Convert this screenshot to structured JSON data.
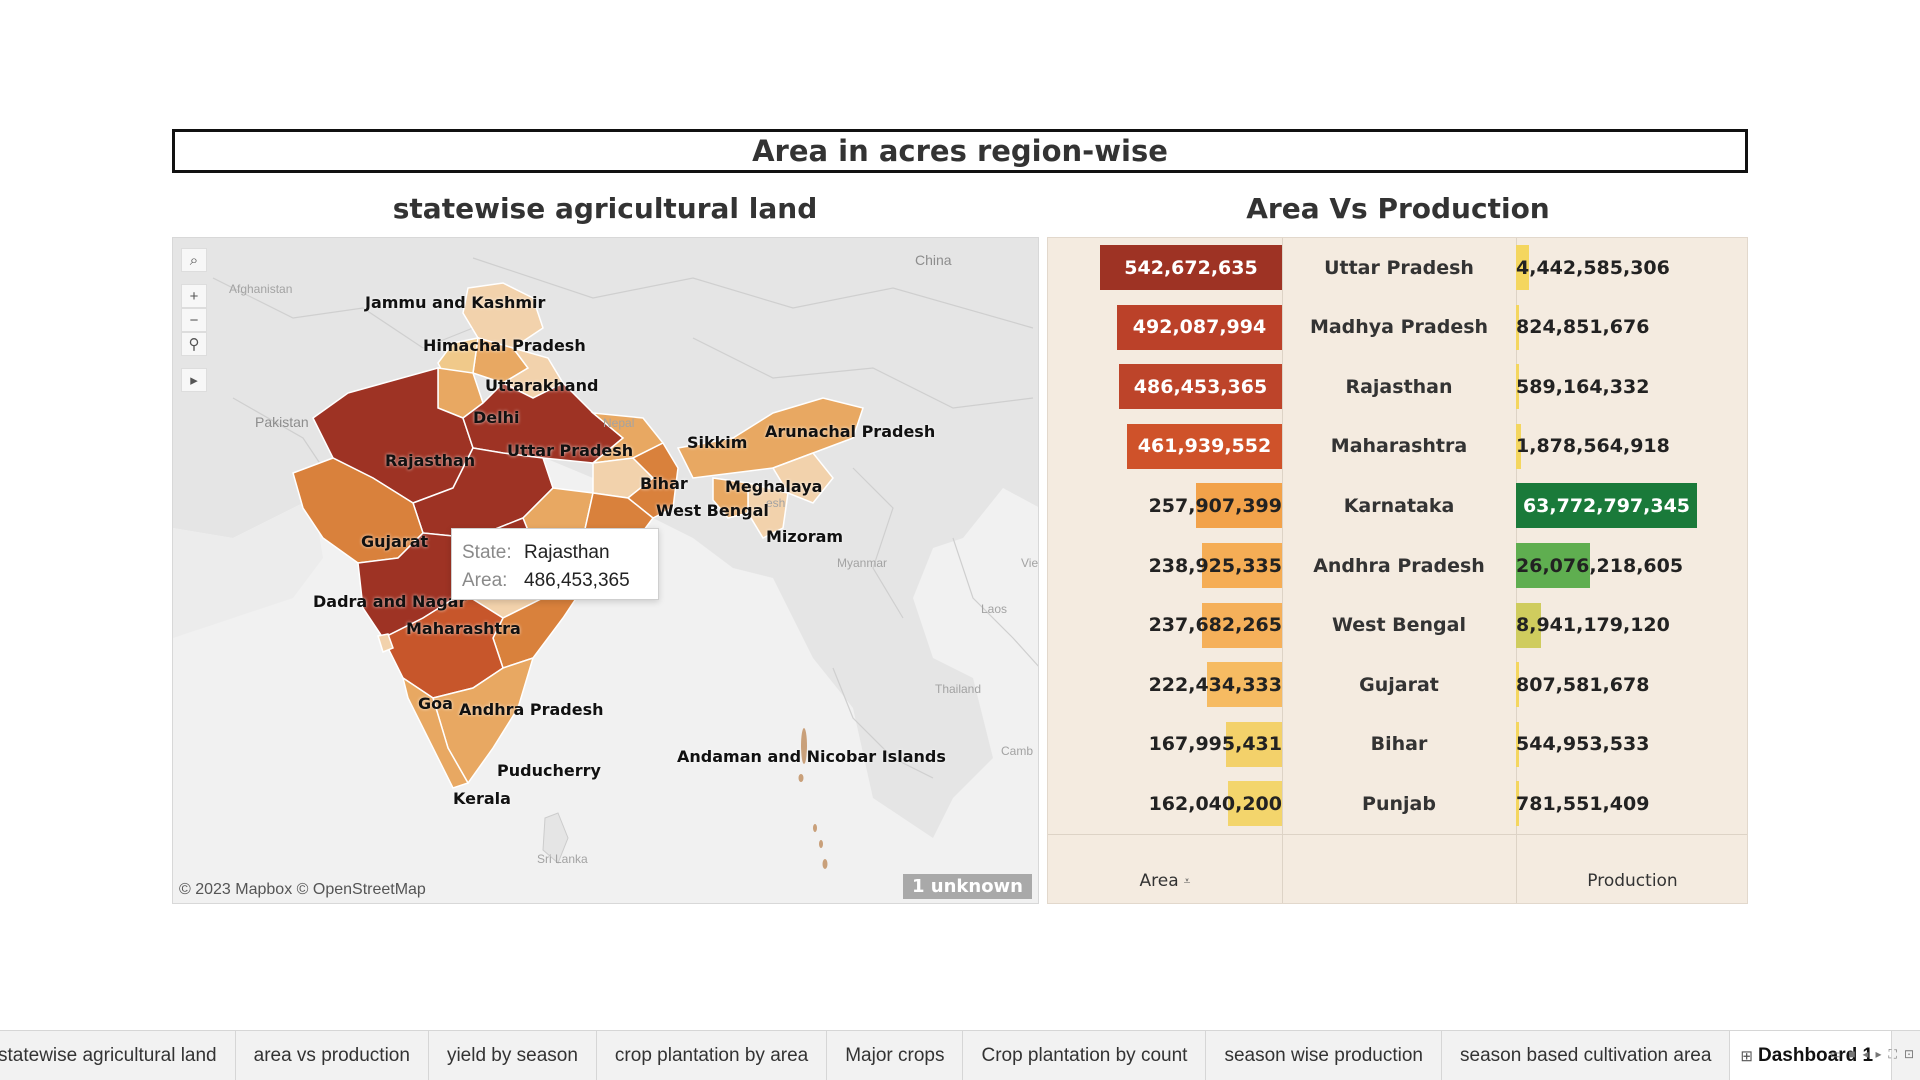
{
  "dashboard": {
    "title": "Area in  acres region-wise",
    "map_title": "statewise  agricultural land",
    "bar_title": "Area Vs Production"
  },
  "map": {
    "tools": {
      "search_icon": "search-icon",
      "zoom_in": "+",
      "zoom_out": "−",
      "pin_icon": "pin-icon",
      "expand_icon": "▸"
    },
    "state_labels": [
      "Jammu and Kashmir",
      "Himachal Pradesh",
      "Uttarakhand",
      "Delhi",
      "Rajasthan",
      "Uttar Pradesh",
      "Sikkim",
      "Arunachal Pradesh",
      "Bihar",
      "Meghalaya",
      "West Bengal",
      "Mizoram",
      "Gujarat",
      "Dadra and Nagar",
      "Maharashtra",
      "Goa",
      "Andhra Pradesh",
      "Puducherry",
      "Kerala",
      "Andaman and Nicobar Islands"
    ],
    "geo_labels": [
      "China",
      "Afghanistan",
      "Pakistan",
      "Nepal",
      "Myanmar",
      "Laos",
      "Thailand",
      "Sri Lanka",
      "Camb",
      "Vie",
      "esh"
    ],
    "attribution": "© 2023 Mapbox © OpenStreetMap",
    "unknown_badge": "1 unknown",
    "tooltip": {
      "state_key": "State:",
      "state_value": "Rajasthan",
      "area_key": "Area:",
      "area_value": "486,453,365"
    },
    "colors": {
      "highest": "#9e3324",
      "high": "#c7562b",
      "mid": "#d9813c",
      "low": "#e8a862",
      "lowest": "#f2d2ac"
    }
  },
  "table": {
    "area_axis_label": "Area",
    "production_axis_label": "Production",
    "sort_icon": "sort-descending-icon",
    "rows": [
      {
        "state": "Uttar Pradesh",
        "area": "542,672,635",
        "area_num": 542672635,
        "production": "4,442,585,306",
        "prod_num": 4442585306,
        "area_color": "#9e3324",
        "prod_color": "#f4d65f"
      },
      {
        "state": "Madhya Pradesh",
        "area": "492,087,994",
        "area_num": 492087994,
        "production": "824,851,676",
        "prod_num": 824851676,
        "area_color": "#bb4129",
        "prod_color": "#f4d65f"
      },
      {
        "state": "Rajasthan",
        "area": "486,453,365",
        "area_num": 486453365,
        "production": "589,164,332",
        "prod_num": 589164332,
        "area_color": "#bd442a",
        "prod_color": "#f4d65f"
      },
      {
        "state": "Maharashtra",
        "area": "461,939,552",
        "area_num": 461939552,
        "production": "1,878,564,918",
        "prod_num": 1878564918,
        "area_color": "#cf522a",
        "prod_color": "#f4d65f"
      },
      {
        "state": "Karnataka",
        "area": "257,907,399",
        "area_num": 257907399,
        "production": "63,772,797,345",
        "prod_num": 63772797345,
        "area_color": "#f2a24a",
        "prod_color": "#1a7a3a"
      },
      {
        "state": "Andhra Pradesh",
        "area": "238,925,335",
        "area_num": 238925335,
        "production": "26,076,218,605",
        "prod_num": 26076218605,
        "area_color": "#f5ad55",
        "prod_color": "#5fae50"
      },
      {
        "state": "West Bengal",
        "area": "237,682,265",
        "area_num": 237682265,
        "production": "8,941,179,120",
        "prod_num": 8941179120,
        "area_color": "#f5b05a",
        "prod_color": "#cfcc5e"
      },
      {
        "state": "Gujarat",
        "area": "222,434,333",
        "area_num": 222434333,
        "production": "807,581,678",
        "prod_num": 807581678,
        "area_color": "#f6bb62",
        "prod_color": "#f4d65f"
      },
      {
        "state": "Bihar",
        "area": "167,995,431",
        "area_num": 167995431,
        "production": "544,953,533",
        "prod_num": 544953533,
        "area_color": "#f3d16a",
        "prod_color": "#f4d65f"
      },
      {
        "state": "Punjab",
        "area": "162,040,200",
        "area_num": 162040200,
        "production": "781,551,409",
        "prod_num": 781551409,
        "area_color": "#f3d56c",
        "prod_color": "#f4d65f"
      }
    ]
  },
  "tabs": [
    "statewise agricultural land",
    "area vs production",
    "yield by season",
    "crop plantation by area",
    "Major crops",
    "Crop plantation by count",
    "season wise production",
    "season based cultivation area"
  ],
  "active_tab": {
    "icon": "dashboard-icon",
    "label": "Dashboard 1"
  }
}
